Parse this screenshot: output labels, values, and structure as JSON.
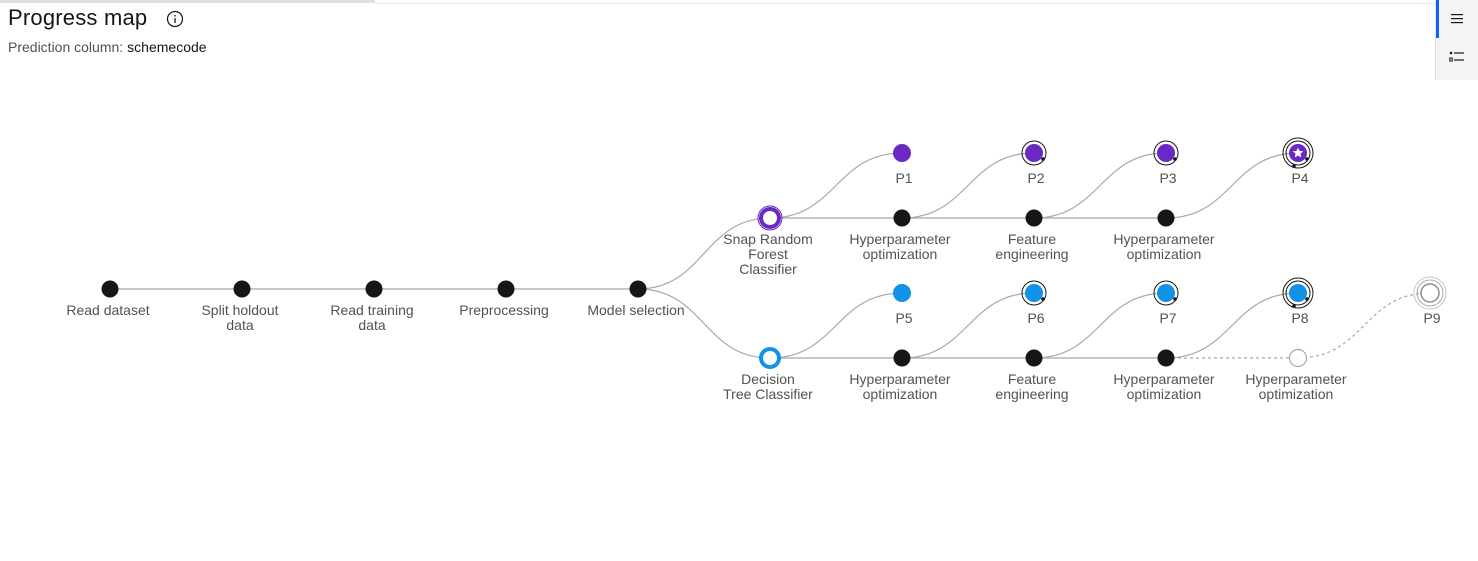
{
  "header": {
    "title": "Progress map",
    "prediction_label": "Prediction column:",
    "prediction_value": "schemecode"
  },
  "colors": {
    "node": "#161616",
    "edge": "#a8a8a8",
    "purple": "#6929c4",
    "blue": "#1192e8",
    "outline": "#161616"
  },
  "pipeline_nodes": [
    {
      "id": "read-dataset",
      "label": [
        "Read dataset"
      ]
    },
    {
      "id": "split-holdout",
      "label": [
        "Split holdout",
        "data"
      ]
    },
    {
      "id": "read-training",
      "label": [
        "Read training",
        "data"
      ]
    },
    {
      "id": "preprocessing",
      "label": [
        "Preprocessing"
      ]
    },
    {
      "id": "model-selection",
      "label": [
        "Model selection"
      ]
    }
  ],
  "branches": [
    {
      "name": "snap-random-forest",
      "color": "purple",
      "model_label": [
        "Snap Random",
        "Forest",
        "Classifier"
      ],
      "steps": [
        {
          "label": [
            "Hyperparameter",
            "optimization"
          ]
        },
        {
          "label": [
            "Feature",
            "engineering"
          ]
        },
        {
          "label": [
            "Hyperparameter",
            "optimization"
          ]
        }
      ],
      "pipelines": [
        {
          "label": "P1",
          "rings": 0,
          "star": false
        },
        {
          "label": "P2",
          "rings": 1,
          "star": false
        },
        {
          "label": "P3",
          "rings": 1,
          "star": false
        },
        {
          "label": "P4",
          "rings": 2,
          "star": true
        }
      ]
    },
    {
      "name": "decision-tree",
      "color": "blue",
      "model_label": [
        "Decision",
        "Tree Classifier"
      ],
      "steps": [
        {
          "label": [
            "Hyperparameter",
            "optimization"
          ]
        },
        {
          "label": [
            "Feature",
            "engineering"
          ]
        },
        {
          "label": [
            "Hyperparameter",
            "optimization"
          ]
        },
        {
          "label": [
            "Hyperparameter",
            "optimization"
          ],
          "pending": true
        }
      ],
      "pipelines": [
        {
          "label": "P5",
          "rings": 0,
          "star": false
        },
        {
          "label": "P6",
          "rings": 1,
          "star": false
        },
        {
          "label": "P7",
          "rings": 1,
          "star": false
        },
        {
          "label": "P8",
          "rings": 2,
          "star": false
        },
        {
          "label": "P9",
          "rings": 2,
          "pending": true
        }
      ]
    }
  ]
}
